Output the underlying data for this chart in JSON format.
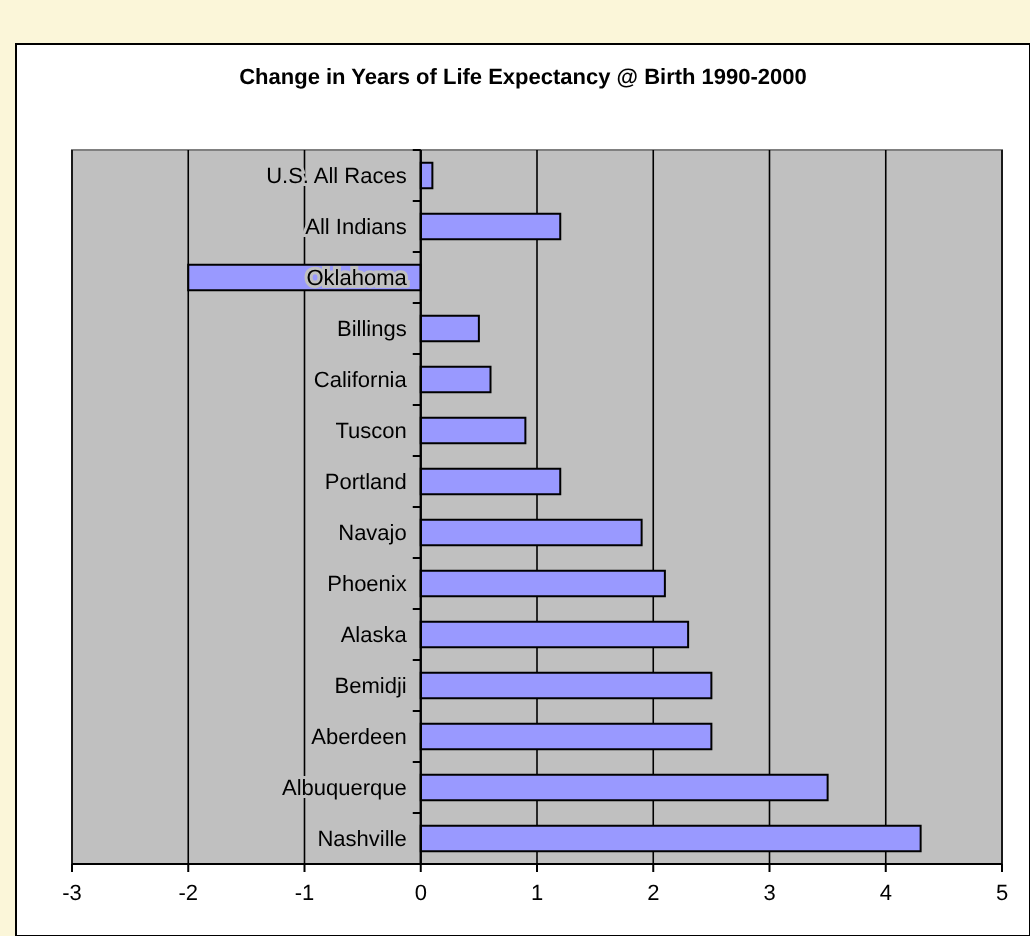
{
  "chart_data": {
    "type": "bar",
    "orientation": "horizontal",
    "title": "Change in Years of Life Expectancy @ Birth 1990-2000",
    "categories": [
      "U.S. All Races",
      "All Indians",
      "Oklahoma",
      "Billings",
      "California",
      "Tuscon",
      "Portland",
      "Navajo",
      "Phoenix",
      "Alaska",
      "Bemidji",
      "Aberdeen",
      "Albuquerque",
      "Nashville"
    ],
    "values": [
      0.1,
      1.2,
      -2.0,
      0.5,
      0.6,
      0.9,
      1.2,
      1.9,
      2.1,
      2.3,
      2.5,
      2.5,
      3.5,
      4.3
    ],
    "color": "#9999ff",
    "xlim": [
      -3,
      5
    ],
    "xticks": [
      -3,
      -2,
      -1,
      0,
      1,
      2,
      3,
      4,
      5
    ],
    "grid": "x"
  }
}
